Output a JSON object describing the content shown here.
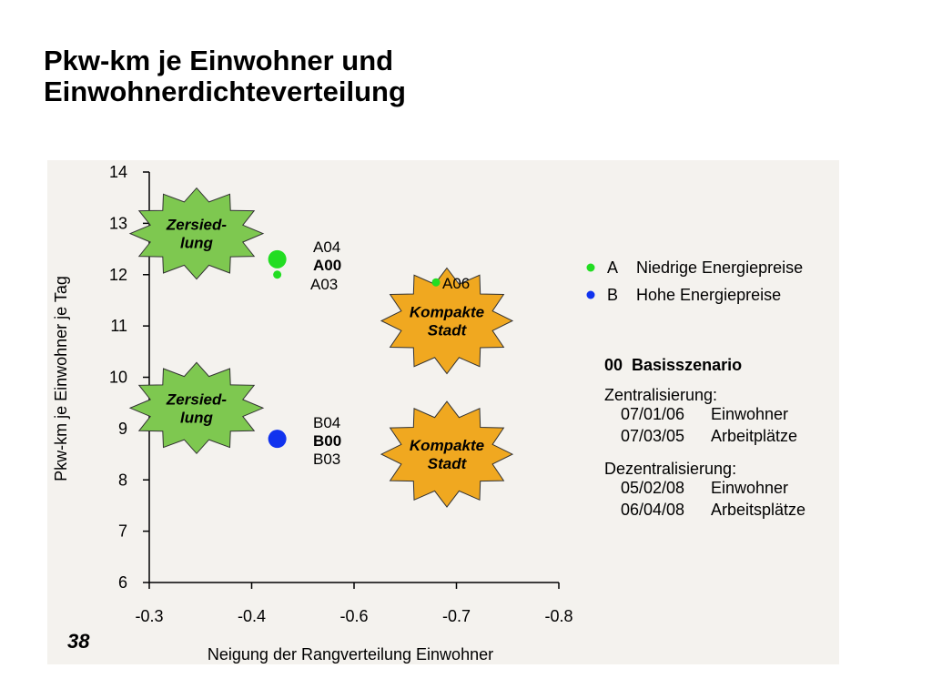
{
  "title_line1": "Pkw-km je Einwohner und",
  "title_line2": "Einwohnerdichteverteilung",
  "slide_number": "38",
  "colors": {
    "A": "#22dd22",
    "B": "#1133ee",
    "zersiedlung": "#7ec850",
    "kompakt": "#f0a820",
    "panel": "#f4f2ee"
  },
  "chart_data": {
    "type": "scatter",
    "xlabel": "Neigung der Rangverteilung Einwohner",
    "ylabel": "Pkw-km je Einwohner je Tag",
    "x_ticks": [
      "-0.3",
      "-0.4",
      "-0.6",
      "-0.7",
      "-0.8"
    ],
    "y_ticks": [
      "6",
      "7",
      "8",
      "9",
      "10",
      "11",
      "12",
      "13",
      "14"
    ],
    "ylim": [
      6,
      14
    ],
    "grid": false,
    "series": [
      {
        "name": "A",
        "color": "#22dd22",
        "points": [
          {
            "label": "A04",
            "x": "-0.45",
            "y": 12.35,
            "bold": false
          },
          {
            "label": "A00",
            "x": "-0.45",
            "y": 12.3,
            "bold": true
          },
          {
            "label": "A03",
            "x": "-0.45",
            "y": 12.0,
            "bold": false
          },
          {
            "label": "A06",
            "x": "-0.68",
            "y": 11.85,
            "bold": false
          }
        ]
      },
      {
        "name": "B",
        "color": "#1133ee",
        "points": [
          {
            "label": "B04",
            "x": "-0.45",
            "y": 8.85,
            "bold": false
          },
          {
            "label": "B00",
            "x": "-0.45",
            "y": 8.8,
            "bold": true
          },
          {
            "label": "B03",
            "x": "-0.45",
            "y": 8.75,
            "bold": false
          }
        ]
      }
    ],
    "annotations": [
      {
        "text1": "Zersied-",
        "text2": "lung",
        "kind": "zersiedlung",
        "y": 12.8
      },
      {
        "text1": "Zersied-",
        "text2": "lung",
        "kind": "zersiedlung",
        "y": 9.4
      },
      {
        "text1": "Kompakte",
        "text2": "Stadt",
        "kind": "kompakt",
        "y": 11.1
      },
      {
        "text1": "Kompakte",
        "text2": "Stadt",
        "kind": "kompakt",
        "y": 8.5
      }
    ]
  },
  "legend": {
    "a_key": "A",
    "a_text": "Niedrige Energiepreise",
    "b_key": "B",
    "b_text": "Hohe Energiepreise",
    "base": "00  Basisszenario",
    "zentral_head": "Zentralisierung:",
    "zentral_1_code": "07/01/06",
    "zentral_1_text": "Einwohner",
    "zentral_2_code": "07/03/05",
    "zentral_2_text": "Arbeitplätze",
    "dezentral_head": "Dezentralisierung:",
    "dezentral_1_code": "05/02/08",
    "dezentral_1_text": "Einwohner",
    "dezentral_2_code": "06/04/08",
    "dezentral_2_text": "Arbeitsplätze"
  }
}
